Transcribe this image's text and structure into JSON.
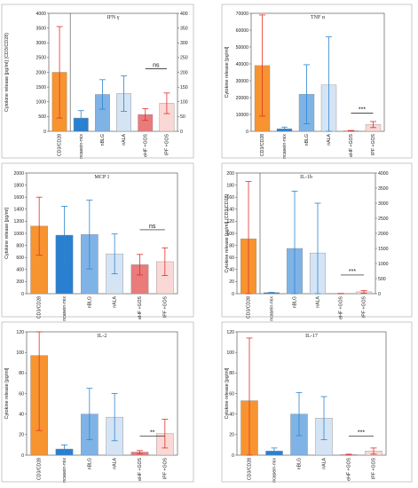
{
  "colors": {
    "cd3": "#f7942f",
    "casein": "#2a80d0",
    "nblg": "#7fb3e6",
    "nala": "#d4e4f4",
    "ehf": "#e97b7b",
    "ipf": "#fad8d6",
    "bar_edge": "#8a8a8a",
    "err_red": "#e0302a",
    "err_blue": "#2f85cf"
  },
  "chart_data": [
    {
      "type": "bar",
      "title": "IFN γ",
      "ylabel": "Cytokine release [pg/ml] (CD3/CD28)",
      "ylim_left": [
        0,
        4000
      ],
      "yticks_left": [
        0,
        500,
        1000,
        1500,
        2000,
        2500,
        3000,
        3500,
        4000
      ],
      "ylim_right": [
        0,
        400
      ],
      "yticks_right": [
        0,
        50,
        100,
        150,
        200,
        250,
        300,
        350,
        400
      ],
      "dual_axis": true,
      "categories": [
        "CD3/CD28",
        "ncasein-mix",
        "nBLG",
        "nALA",
        "eHF +GOS",
        "IPF +GOS"
      ],
      "values": [
        2000,
        45,
        125,
        128,
        57,
        95
      ],
      "errors": [
        1550,
        25,
        50,
        60,
        20,
        35
      ],
      "significance": "ns"
    },
    {
      "type": "bar",
      "title": "TNF α",
      "ylabel": "Cytokine release [pg/ml]",
      "ylim_left": [
        0,
        70000
      ],
      "yticks_left": [
        0,
        10000,
        20000,
        30000,
        40000,
        50000,
        60000,
        70000
      ],
      "dual_axis": false,
      "categories": [
        "CD3/CD28",
        "ncasein-mix",
        "nBLG",
        "nALA",
        "eHF +GOS",
        "IPF +GOS"
      ],
      "values": [
        39000,
        1500,
        22000,
        27500,
        300,
        4000
      ],
      "errors": [
        30000,
        1000,
        17500,
        28500,
        200,
        1800
      ],
      "significance": "***"
    },
    {
      "type": "bar",
      "title": "MCP 1",
      "ylabel": "Cytokine release [pg/ml]",
      "ylim_left": [
        0,
        2000
      ],
      "yticks_left": [
        0,
        200,
        400,
        600,
        800,
        1000,
        1200,
        1400,
        1600,
        1800,
        2000
      ],
      "dual_axis": false,
      "categories": [
        "CD3/CD28",
        "ncasein-mix",
        "nBLG",
        "nALA",
        "eHF +GOS",
        "IPF +GOS"
      ],
      "values": [
        1120,
        970,
        980,
        660,
        480,
        530
      ],
      "errors": [
        480,
        480,
        570,
        330,
        170,
        230
      ],
      "significance": "ns"
    },
    {
      "type": "bar",
      "title": "IL-1b",
      "ylabel": "Cytokine release [pg/ml] (CD3/CD28)",
      "ylim_left": [
        0,
        200
      ],
      "yticks_left": [
        0,
        20,
        40,
        60,
        80,
        100,
        120,
        140,
        160,
        180,
        200
      ],
      "ylim_right": [
        0,
        4000
      ],
      "yticks_right": [
        0,
        500,
        1000,
        1500,
        2000,
        2500,
        3000,
        3500,
        4000
      ],
      "dual_axis": true,
      "categories": [
        "CD3/CD28",
        "ncasein-mix",
        "nBLG",
        "nALA",
        "eHF +GOS",
        "IPF +GOS"
      ],
      "values": [
        91,
        35,
        1500,
        1350,
        5,
        60
      ],
      "errors": [
        95,
        10,
        1900,
        1650,
        5,
        40
      ],
      "significance": "***"
    },
    {
      "type": "bar",
      "title": "IL-2",
      "ylabel": "Cytokine release [pg/ml]",
      "ylim_left": [
        0,
        120
      ],
      "yticks_left": [
        0,
        20,
        40,
        60,
        80,
        100,
        120
      ],
      "dual_axis": false,
      "categories": [
        "CD3/CD28",
        "ncasein-mix",
        "nBLG",
        "nALA",
        "eHF +GOS",
        "IPF +GOS"
      ],
      "values": [
        97,
        6,
        40,
        37,
        3,
        21
      ],
      "errors": [
        73,
        4,
        25,
        23,
        1.5,
        14
      ],
      "significance": "**"
    },
    {
      "type": "bar",
      "title": "IL-17",
      "ylabel": "Cytokine release [pg/ml]",
      "ylim_left": [
        0,
        120
      ],
      "yticks_left": [
        0,
        20,
        40,
        60,
        80,
        100,
        120
      ],
      "dual_axis": false,
      "categories": [
        "CD3/CD28",
        "ncasein-mix",
        "nBLG",
        "nALA",
        "eHF +GOS",
        "IPF +GOS"
      ],
      "values": [
        53,
        4,
        40,
        36,
        0.5,
        4
      ],
      "errors": [
        61,
        3,
        21,
        21,
        0.5,
        3
      ],
      "significance": "***"
    }
  ]
}
